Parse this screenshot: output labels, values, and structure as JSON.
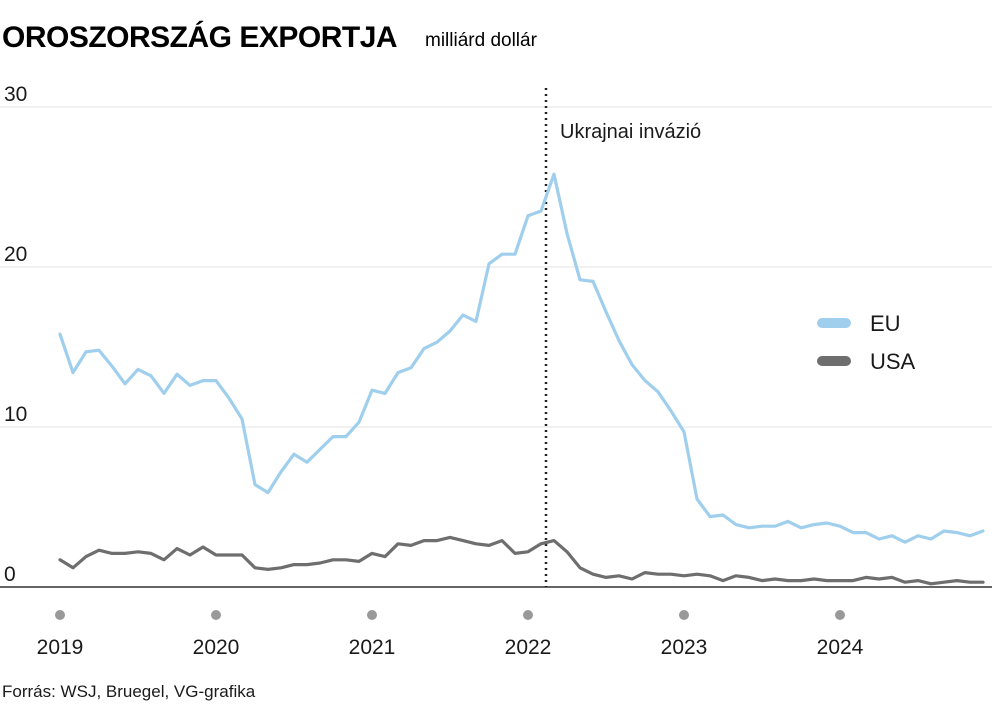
{
  "title": "OROSZORSZÁG EXPORTJA",
  "subtitle": "milliárd dollár",
  "source": "Forrás: WSJ, Bruegel, VG-grafika",
  "colors": {
    "eu": "#9fcfec",
    "usa": "#6e6e6e",
    "grid": "#e3e3e3",
    "axis": "#333333",
    "dot": "#999999"
  },
  "chart_data": {
    "type": "line",
    "title": "OROSZORSZÁG EXPORTJA",
    "subtitle": "milliárd dollár",
    "x_start": "2019-01",
    "x_frequency": "monthly",
    "y_ticks": [
      0,
      10,
      20,
      30
    ],
    "ylim": [
      0,
      30
    ],
    "x_ticks": [
      "2019",
      "2020",
      "2021",
      "2022",
      "2023",
      "2024"
    ],
    "legend_position": "right",
    "grid": true,
    "annotation": {
      "label": "Ukrajnai invázió",
      "x": "2022-02"
    },
    "series": [
      {
        "name": "EU",
        "values": [
          15.8,
          13.4,
          14.7,
          14.8,
          13.8,
          12.7,
          13.6,
          13.2,
          12.1,
          13.3,
          12.6,
          12.9,
          12.9,
          11.8,
          10.5,
          6.4,
          5.9,
          7.2,
          8.3,
          7.8,
          8.6,
          9.4,
          9.4,
          10.3,
          12.3,
          12.1,
          13.4,
          13.7,
          14.9,
          15.3,
          16.0,
          17.0,
          16.6,
          20.2,
          20.8,
          20.8,
          23.2,
          23.5,
          25.8,
          22.1,
          19.2,
          19.1,
          17.2,
          15.4,
          13.9,
          12.9,
          12.2,
          11.0,
          9.7,
          5.5,
          4.4,
          4.5,
          3.9,
          3.7,
          3.8,
          3.8,
          4.1,
          3.7,
          3.9,
          4.0,
          3.8,
          3.4,
          3.4,
          3.0,
          3.2,
          2.8,
          3.2,
          3.0,
          3.5,
          3.4,
          3.2,
          3.5
        ]
      },
      {
        "name": "USA",
        "values": [
          1.7,
          1.2,
          1.9,
          2.3,
          2.1,
          2.1,
          2.2,
          2.1,
          1.7,
          2.4,
          2.0,
          2.5,
          2.0,
          2.0,
          2.0,
          1.2,
          1.1,
          1.2,
          1.4,
          1.4,
          1.5,
          1.7,
          1.7,
          1.6,
          2.1,
          1.9,
          2.7,
          2.6,
          2.9,
          2.9,
          3.1,
          2.9,
          2.7,
          2.6,
          2.9,
          2.1,
          2.2,
          2.7,
          2.9,
          2.2,
          1.2,
          0.8,
          0.6,
          0.7,
          0.5,
          0.9,
          0.8,
          0.8,
          0.7,
          0.8,
          0.7,
          0.4,
          0.7,
          0.6,
          0.4,
          0.5,
          0.4,
          0.4,
          0.5,
          0.4,
          0.4,
          0.4,
          0.6,
          0.5,
          0.6,
          0.3,
          0.4,
          0.2,
          0.3,
          0.4,
          0.3,
          0.3
        ]
      }
    ]
  }
}
